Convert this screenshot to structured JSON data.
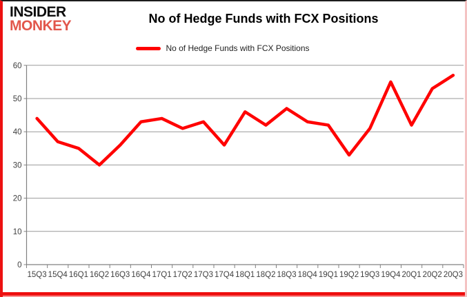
{
  "brand": {
    "line1": "INSIDER",
    "line2": "MONKEY"
  },
  "header": {
    "title": "No of Hedge Funds with FCX Positions"
  },
  "legend": {
    "label": "No of Hedge Funds with FCX Positions",
    "swatch_color": "#ff0000"
  },
  "chart_data": {
    "type": "line",
    "title": "No of Hedge Funds with FCX Positions",
    "categories": [
      "15Q3",
      "15Q4",
      "16Q1",
      "16Q2",
      "16Q3",
      "16Q4",
      "17Q1",
      "17Q2",
      "17Q3",
      "17Q4",
      "18Q1",
      "18Q2",
      "18Q3",
      "18Q4",
      "19Q1",
      "19Q2",
      "19Q3",
      "19Q4",
      "20Q1",
      "20Q2",
      "20Q3"
    ],
    "series": [
      {
        "name": "No of Hedge Funds with FCX Positions",
        "color": "#ff0000",
        "values": [
          44,
          37,
          35,
          30,
          36,
          43,
          44,
          41,
          43,
          36,
          46,
          42,
          47,
          43,
          42,
          33,
          41,
          55,
          42,
          53,
          57
        ]
      }
    ],
    "xlabel": "",
    "ylabel": "",
    "ylim": [
      0,
      60
    ],
    "yticks": [
      0,
      10,
      20,
      30,
      40,
      50,
      60
    ],
    "grid": true,
    "legend_position": "top",
    "colors": {
      "gridline": "#999999",
      "axis": "#808080",
      "tick_label": "#3f3f3f"
    }
  }
}
